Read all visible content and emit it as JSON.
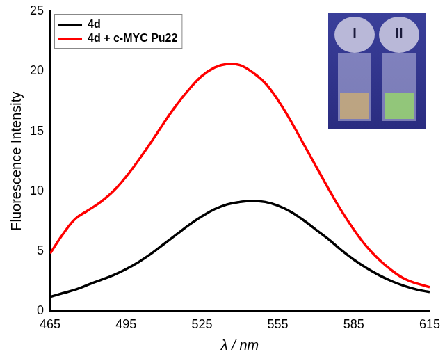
{
  "chart_data": {
    "type": "line",
    "x_label": "λ / nm",
    "y_label": "Fluorescence Intensity",
    "x": [
      465,
      470,
      475,
      480,
      485,
      490,
      495,
      500,
      505,
      510,
      515,
      520,
      525,
      530,
      535,
      540,
      545,
      550,
      555,
      560,
      565,
      570,
      575,
      580,
      585,
      590,
      595,
      600,
      605,
      610,
      615
    ],
    "series": [
      {
        "name": "4d",
        "color": "#000000",
        "values": [
          1.2,
          1.5,
          1.8,
          2.2,
          2.6,
          3.0,
          3.5,
          4.1,
          4.8,
          5.6,
          6.4,
          7.2,
          7.9,
          8.5,
          8.9,
          9.1,
          9.2,
          9.1,
          8.8,
          8.3,
          7.6,
          6.8,
          6.0,
          5.1,
          4.3,
          3.6,
          3.0,
          2.5,
          2.1,
          1.8,
          1.6
        ]
      },
      {
        "name": "4d + c-MYC Pu22",
        "color": "#ff0000",
        "values": [
          4.8,
          6.4,
          7.7,
          8.4,
          9.1,
          10.0,
          11.2,
          12.6,
          14.1,
          15.7,
          17.2,
          18.5,
          19.6,
          20.3,
          20.6,
          20.5,
          19.9,
          19.0,
          17.6,
          15.9,
          14.0,
          12.1,
          10.2,
          8.4,
          6.8,
          5.4,
          4.3,
          3.4,
          2.7,
          2.3,
          2.0
        ]
      }
    ],
    "xlim": [
      465,
      615
    ],
    "xticks": [
      465,
      495,
      525,
      555,
      585,
      615
    ],
    "ylim": [
      0,
      25
    ],
    "yticks": [
      0,
      5,
      10,
      15,
      20,
      25
    ],
    "grid": false,
    "legend": "upper left",
    "annotations": [
      "I",
      "II"
    ]
  }
}
